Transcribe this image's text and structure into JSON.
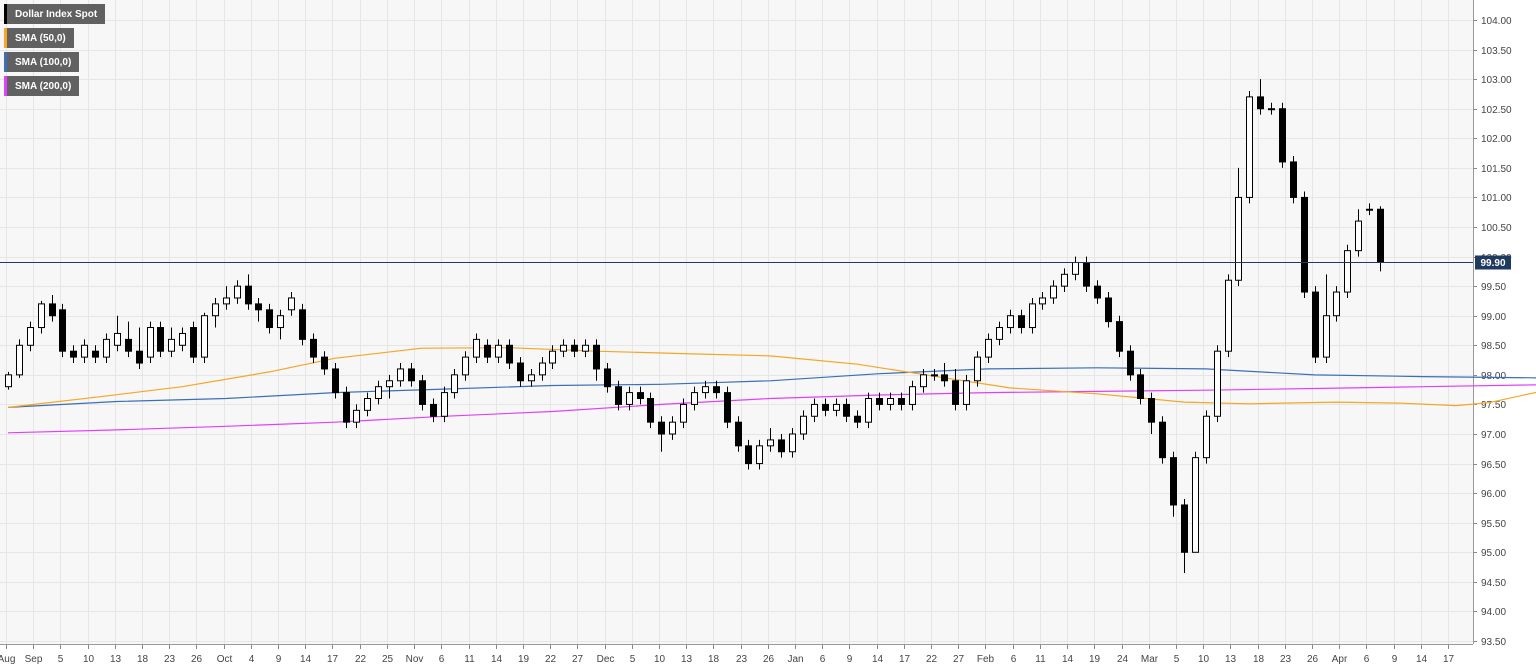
{
  "chart_data": {
    "type": "candlestick",
    "title": "",
    "xlabel": "",
    "ylabel": "",
    "ylim": [
      93.5,
      104.0
    ],
    "y_tick_step": 0.5,
    "y_ticks_format": "two-decimals",
    "grid": true,
    "legend_position": "top-left",
    "series_main": "Dollar Index Spot",
    "last_price_label": "99.90",
    "last_price": 99.9,
    "colors": {
      "background": "#f7f7f7",
      "grid": "#e6e6e6",
      "up_fill": "#ffffff",
      "down_fill": "#000000",
      "candle_edge": "#000000",
      "price_line": "#1f3a5f",
      "price_label_bg": "#1f3a5f"
    },
    "legend": [
      {
        "label": "Dollar Index Spot",
        "color": "#000000"
      },
      {
        "label": "SMA (50,0)",
        "color": "#f5a623"
      },
      {
        "label": "SMA (100,0)",
        "color": "#3b6fb6"
      },
      {
        "label": "SMA (200,0)",
        "color": "#e040fb"
      }
    ],
    "x_labels": [
      "Aug",
      "Sep",
      "5",
      "10",
      "13",
      "18",
      "23",
      "26",
      "Oct",
      "4",
      "9",
      "14",
      "17",
      "22",
      "25",
      "Nov",
      "6",
      "11",
      "14",
      "19",
      "22",
      "27",
      "Dec",
      "5",
      "10",
      "13",
      "18",
      "23",
      "26",
      "Jan",
      "6",
      "9",
      "14",
      "17",
      "22",
      "27",
      "Feb",
      "6",
      "11",
      "14",
      "19",
      "24",
      "Mar",
      "5",
      "10",
      "13",
      "18",
      "23",
      "26",
      "Apr",
      "6",
      "9",
      "14",
      "17"
    ],
    "candles": [
      [
        97.8,
        98.0,
        97.75,
        98.05
      ],
      [
        98.0,
        98.5,
        97.95,
        98.6
      ],
      [
        98.5,
        98.8,
        98.4,
        98.9
      ],
      [
        98.8,
        99.2,
        98.7,
        99.25
      ],
      [
        99.2,
        99.0,
        98.9,
        99.35
      ],
      [
        99.1,
        98.4,
        98.3,
        99.2
      ],
      [
        98.4,
        98.3,
        98.2,
        98.5
      ],
      [
        98.3,
        98.5,
        98.2,
        98.6
      ],
      [
        98.4,
        98.3,
        98.2,
        98.5
      ],
      [
        98.3,
        98.6,
        98.2,
        98.7
      ],
      [
        98.5,
        98.7,
        98.4,
        99.0
      ],
      [
        98.6,
        98.4,
        98.3,
        98.9
      ],
      [
        98.4,
        98.2,
        98.1,
        98.8
      ],
      [
        98.3,
        98.8,
        98.2,
        98.9
      ],
      [
        98.8,
        98.4,
        98.3,
        98.9
      ],
      [
        98.4,
        98.6,
        98.3,
        98.8
      ],
      [
        98.5,
        98.7,
        98.4,
        98.8
      ],
      [
        98.8,
        98.3,
        98.2,
        98.9
      ],
      [
        98.3,
        99.0,
        98.2,
        99.05
      ],
      [
        99.0,
        99.2,
        98.8,
        99.3
      ],
      [
        99.2,
        99.3,
        99.1,
        99.5
      ],
      [
        99.3,
        99.5,
        99.2,
        99.6
      ],
      [
        99.5,
        99.2,
        99.1,
        99.7
      ],
      [
        99.2,
        99.1,
        98.9,
        99.3
      ],
      [
        99.1,
        98.8,
        98.7,
        99.2
      ],
      [
        98.8,
        99.0,
        98.6,
        99.1
      ],
      [
        99.1,
        99.3,
        99.0,
        99.4
      ],
      [
        99.1,
        98.6,
        98.5,
        99.2
      ],
      [
        98.6,
        98.3,
        98.2,
        98.7
      ],
      [
        98.3,
        98.1,
        98.0,
        98.4
      ],
      [
        98.1,
        97.7,
        97.6,
        98.2
      ],
      [
        97.7,
        97.2,
        97.1,
        97.8
      ],
      [
        97.2,
        97.4,
        97.1,
        97.5
      ],
      [
        97.4,
        97.6,
        97.3,
        97.7
      ],
      [
        97.6,
        97.8,
        97.5,
        97.9
      ],
      [
        97.8,
        97.9,
        97.6,
        98.0
      ],
      [
        97.9,
        98.1,
        97.8,
        98.2
      ],
      [
        98.1,
        97.9,
        97.8,
        98.2
      ],
      [
        97.9,
        97.5,
        97.4,
        98.0
      ],
      [
        97.5,
        97.3,
        97.2,
        97.6
      ],
      [
        97.3,
        97.7,
        97.2,
        97.8
      ],
      [
        97.7,
        98.0,
        97.6,
        98.1
      ],
      [
        98.0,
        98.3,
        97.9,
        98.4
      ],
      [
        98.3,
        98.6,
        98.2,
        98.7
      ],
      [
        98.5,
        98.3,
        98.2,
        98.6
      ],
      [
        98.3,
        98.5,
        98.2,
        98.6
      ],
      [
        98.5,
        98.2,
        98.1,
        98.6
      ],
      [
        98.2,
        97.9,
        97.8,
        98.3
      ],
      [
        97.9,
        98.0,
        97.8,
        98.1
      ],
      [
        98.0,
        98.2,
        97.9,
        98.3
      ],
      [
        98.2,
        98.4,
        98.1,
        98.5
      ],
      [
        98.4,
        98.5,
        98.3,
        98.6
      ],
      [
        98.5,
        98.4,
        98.3,
        98.6
      ],
      [
        98.4,
        98.5,
        98.3,
        98.6
      ],
      [
        98.5,
        98.1,
        97.9,
        98.6
      ],
      [
        98.1,
        97.8,
        97.7,
        98.2
      ],
      [
        97.8,
        97.5,
        97.4,
        97.9
      ],
      [
        97.5,
        97.7,
        97.4,
        97.8
      ],
      [
        97.7,
        97.6,
        97.5,
        97.8
      ],
      [
        97.6,
        97.2,
        97.1,
        97.7
      ],
      [
        97.2,
        97.0,
        96.7,
        97.3
      ],
      [
        97.0,
        97.2,
        96.9,
        97.3
      ],
      [
        97.2,
        97.5,
        97.1,
        97.6
      ],
      [
        97.5,
        97.7,
        97.4,
        97.8
      ],
      [
        97.7,
        97.8,
        97.6,
        97.9
      ],
      [
        97.8,
        97.7,
        97.6,
        97.9
      ],
      [
        97.7,
        97.2,
        97.1,
        97.8
      ],
      [
        97.2,
        96.8,
        96.7,
        97.3
      ],
      [
        96.8,
        96.5,
        96.4,
        96.9
      ],
      [
        96.5,
        96.8,
        96.4,
        96.9
      ],
      [
        96.8,
        96.9,
        96.7,
        97.1
      ],
      [
        96.9,
        96.7,
        96.6,
        97.0
      ],
      [
        96.7,
        97.0,
        96.6,
        97.1
      ],
      [
        97.0,
        97.3,
        96.9,
        97.4
      ],
      [
        97.3,
        97.5,
        97.2,
        97.6
      ],
      [
        97.5,
        97.4,
        97.3,
        97.6
      ],
      [
        97.4,
        97.5,
        97.3,
        97.6
      ],
      [
        97.5,
        97.3,
        97.2,
        97.6
      ],
      [
        97.3,
        97.2,
        97.1,
        97.4
      ],
      [
        97.2,
        97.6,
        97.1,
        97.7
      ],
      [
        97.6,
        97.5,
        97.4,
        97.7
      ],
      [
        97.5,
        97.6,
        97.4,
        97.7
      ],
      [
        97.6,
        97.5,
        97.4,
        97.7
      ],
      [
        97.5,
        97.8,
        97.4,
        97.9
      ],
      [
        97.8,
        98.0,
        97.7,
        98.1
      ],
      [
        98.0,
        98.0,
        97.9,
        98.1
      ],
      [
        98.0,
        97.9,
        97.8,
        98.2
      ],
      [
        97.9,
        97.5,
        97.4,
        98.1
      ],
      [
        97.5,
        97.9,
        97.4,
        98.0
      ],
      [
        97.9,
        98.3,
        97.8,
        98.4
      ],
      [
        98.3,
        98.6,
        98.2,
        98.7
      ],
      [
        98.6,
        98.8,
        98.5,
        98.9
      ],
      [
        98.8,
        99.0,
        98.7,
        99.1
      ],
      [
        99.0,
        98.8,
        98.7,
        99.1
      ],
      [
        98.8,
        99.2,
        98.7,
        99.3
      ],
      [
        99.2,
        99.3,
        99.1,
        99.4
      ],
      [
        99.3,
        99.5,
        99.2,
        99.6
      ],
      [
        99.5,
        99.7,
        99.4,
        99.8
      ],
      [
        99.7,
        99.9,
        99.6,
        100.0
      ],
      [
        99.9,
        99.5,
        99.4,
        100.0
      ],
      [
        99.5,
        99.3,
        99.2,
        99.6
      ],
      [
        99.3,
        98.9,
        98.8,
        99.4
      ],
      [
        98.9,
        98.4,
        98.3,
        99.0
      ],
      [
        98.4,
        98.0,
        97.9,
        98.5
      ],
      [
        98.0,
        97.6,
        97.5,
        98.1
      ],
      [
        97.6,
        97.2,
        97.0,
        97.7
      ],
      [
        97.2,
        96.6,
        96.5,
        97.3
      ],
      [
        96.6,
        95.8,
        95.6,
        96.7
      ],
      [
        95.8,
        95.0,
        94.65,
        95.9
      ],
      [
        95.0,
        96.6,
        95.0,
        96.7
      ],
      [
        96.6,
        97.3,
        96.5,
        97.4
      ],
      [
        97.3,
        98.4,
        97.2,
        98.5
      ],
      [
        98.4,
        99.6,
        98.3,
        99.7
      ],
      [
        99.6,
        101.0,
        99.5,
        101.5
      ],
      [
        101.0,
        102.7,
        100.9,
        102.8
      ],
      [
        102.7,
        102.5,
        102.4,
        103.0
      ],
      [
        102.5,
        102.5,
        102.4,
        102.6
      ],
      [
        102.5,
        101.6,
        101.5,
        102.6
      ],
      [
        101.6,
        101.0,
        100.9,
        101.7
      ],
      [
        101.0,
        99.4,
        99.3,
        101.1
      ],
      [
        99.4,
        98.3,
        98.2,
        99.5
      ],
      [
        98.3,
        99.0,
        98.2,
        99.7
      ],
      [
        99.0,
        99.4,
        98.9,
        99.5
      ],
      [
        99.4,
        100.1,
        99.3,
        100.2
      ],
      [
        100.1,
        100.6,
        100.0,
        100.8
      ],
      [
        100.8,
        100.8,
        100.7,
        100.9
      ],
      [
        100.8,
        99.9,
        99.75,
        100.85
      ]
    ],
    "sma_50": [
      [
        0,
        97.45
      ],
      [
        8,
        97.62
      ],
      [
        16,
        97.8
      ],
      [
        24,
        98.05
      ],
      [
        30,
        98.28
      ],
      [
        38,
        98.45
      ],
      [
        46,
        98.46
      ],
      [
        54,
        98.4
      ],
      [
        62,
        98.36
      ],
      [
        70,
        98.32
      ],
      [
        78,
        98.18
      ],
      [
        86,
        97.95
      ],
      [
        92,
        97.78
      ],
      [
        100,
        97.68
      ],
      [
        108,
        97.54
      ],
      [
        114,
        97.51
      ],
      [
        122,
        97.54
      ],
      [
        128,
        97.52
      ],
      [
        133,
        97.48
      ],
      [
        136,
        97.53
      ],
      [
        140,
        97.69
      ],
      [
        146,
        97.92
      ],
      [
        150,
        97.98
      ],
      [
        156,
        97.95
      ],
      [
        160,
        97.88
      ],
      [
        164,
        97.86
      ],
      [
        168,
        98.0
      ],
      [
        172,
        98.36
      ],
      [
        176,
        98.72
      ],
      [
        180,
        98.9
      ]
    ],
    "sma_100": [
      [
        0,
        97.45
      ],
      [
        10,
        97.55
      ],
      [
        20,
        97.6
      ],
      [
        30,
        97.7
      ],
      [
        40,
        97.76
      ],
      [
        50,
        97.82
      ],
      [
        60,
        97.84
      ],
      [
        70,
        97.9
      ],
      [
        80,
        98.02
      ],
      [
        90,
        98.1
      ],
      [
        100,
        98.12
      ],
      [
        110,
        98.1
      ],
      [
        120,
        98.0
      ],
      [
        130,
        97.97
      ],
      [
        140,
        97.95
      ],
      [
        150,
        97.92
      ],
      [
        160,
        97.86
      ],
      [
        166,
        97.87
      ],
      [
        170,
        98.0
      ],
      [
        174,
        98.1
      ],
      [
        180,
        98.22
      ]
    ],
    "sma_200": [
      [
        0,
        97.02
      ],
      [
        10,
        97.07
      ],
      [
        20,
        97.13
      ],
      [
        30,
        97.2
      ],
      [
        40,
        97.3
      ],
      [
        50,
        97.38
      ],
      [
        60,
        97.5
      ],
      [
        70,
        97.6
      ],
      [
        80,
        97.66
      ],
      [
        90,
        97.7
      ],
      [
        100,
        97.72
      ],
      [
        110,
        97.74
      ],
      [
        120,
        97.77
      ],
      [
        130,
        97.8
      ],
      [
        140,
        97.83
      ],
      [
        150,
        97.87
      ],
      [
        160,
        97.82
      ],
      [
        166,
        97.83
      ],
      [
        170,
        97.9
      ],
      [
        175,
        98.02
      ],
      [
        180,
        98.13
      ]
    ]
  }
}
